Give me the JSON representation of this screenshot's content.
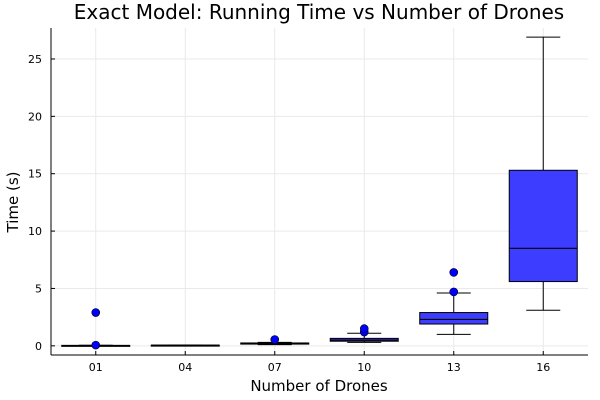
{
  "chart_data": {
    "type": "box",
    "title": "Exact Model: Running Time vs Number of Drones",
    "xlabel": "Number of Drones",
    "ylabel": "Time (s)",
    "categories": [
      "01",
      "04",
      "07",
      "10",
      "13",
      "16"
    ],
    "ylim": [
      -0.8,
      27.7
    ],
    "yticks": [
      0,
      5,
      10,
      15,
      20,
      25
    ],
    "grid": true,
    "legend": "none",
    "box_color": "#3d3dff",
    "outlier_color": "#0000ff",
    "boxes": [
      {
        "category": "01",
        "min": 0.0,
        "q1": 0.0,
        "median": 0.02,
        "q3": 0.04,
        "max": 0.05,
        "outliers": [
          2.9,
          0.06
        ]
      },
      {
        "category": "04",
        "min": 0.03,
        "q1": 0.04,
        "median": 0.05,
        "q3": 0.06,
        "max": 0.07,
        "outliers": []
      },
      {
        "category": "07",
        "min": 0.1,
        "q1": 0.15,
        "median": 0.2,
        "q3": 0.25,
        "max": 0.3,
        "outliers": [
          0.55
        ]
      },
      {
        "category": "10",
        "min": 0.3,
        "q1": 0.4,
        "median": 0.5,
        "q3": 0.65,
        "max": 1.1,
        "outliers": [
          1.2,
          1.5
        ]
      },
      {
        "category": "13",
        "min": 1.0,
        "q1": 1.9,
        "median": 2.3,
        "q3": 2.9,
        "max": 4.6,
        "outliers": [
          4.7,
          6.4
        ]
      },
      {
        "category": "16",
        "min": 3.1,
        "q1": 5.6,
        "median": 8.5,
        "q3": 15.3,
        "max": 26.9,
        "outliers": []
      }
    ]
  }
}
